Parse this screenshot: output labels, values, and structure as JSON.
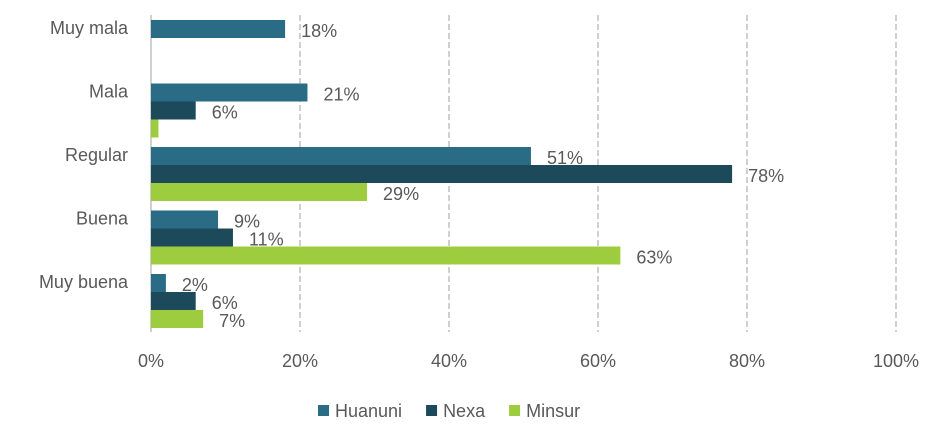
{
  "chart_data": {
    "type": "bar",
    "orientation": "horizontal",
    "categories": [
      "Muy mala",
      "Mala",
      "Regular",
      "Buena",
      "Muy buena"
    ],
    "series": [
      {
        "name": "Huanuni",
        "color": "#2a6b86",
        "values": [
          18,
          21,
          51,
          9,
          2
        ],
        "value_labels": [
          "18%",
          "21%",
          "51%",
          "9%",
          "2%"
        ]
      },
      {
        "name": "Nexa",
        "color": "#1d4a5a",
        "values": [
          null,
          6,
          78,
          11,
          6
        ],
        "value_labels": [
          null,
          "6%",
          "78%",
          "11%",
          "6%"
        ]
      },
      {
        "name": "Minsur",
        "color": "#9dcc3f",
        "values": [
          null,
          1,
          29,
          63,
          7
        ],
        "value_labels": [
          null,
          null,
          "29%",
          "63%",
          "7%"
        ]
      }
    ],
    "xlim": [
      0,
      100
    ],
    "xticks": [
      {
        "value": 0,
        "label": "0%"
      },
      {
        "value": 20,
        "label": "20%"
      },
      {
        "value": 40,
        "label": "40%"
      },
      {
        "value": 60,
        "label": "60%"
      },
      {
        "value": 80,
        "label": "80%"
      },
      {
        "value": 100,
        "label": "100%"
      }
    ],
    "grid": true,
    "legend": "bottom"
  }
}
